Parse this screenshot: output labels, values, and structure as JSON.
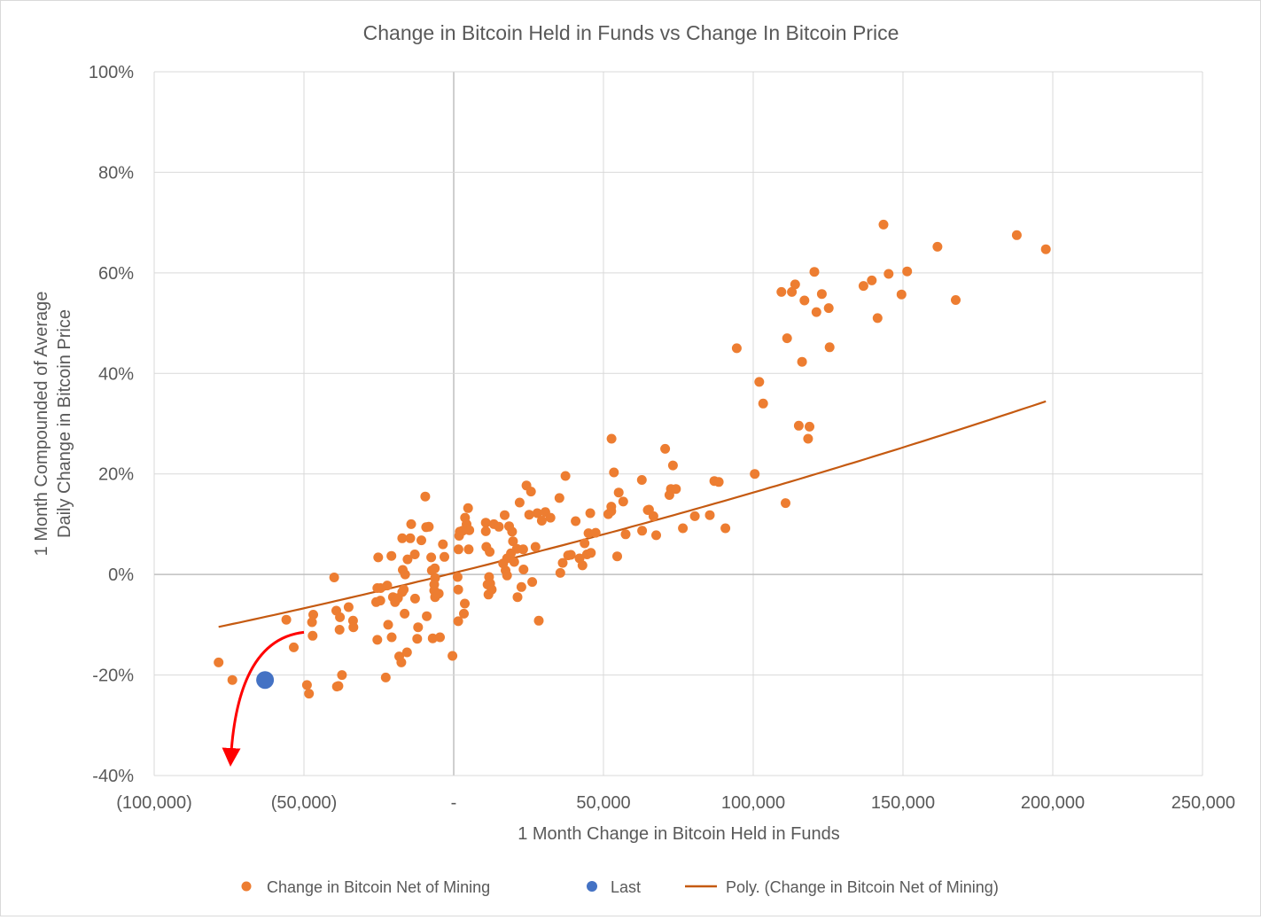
{
  "chart_data": {
    "type": "scatter",
    "title": "Change in Bitcoin Held in Funds vs Change In Bitcoin Price",
    "xlabel": "1 Month Change in Bitcoin Held in Funds",
    "ylabel_lines": [
      "1 Month Compounded of Average",
      "Daily Change in Bitcoin Price"
    ],
    "xlim": [
      -100000,
      250000
    ],
    "ylim": [
      -40,
      100
    ],
    "x_ticks": [
      {
        "value": -100000,
        "label": "(100,000)"
      },
      {
        "value": -50000,
        "label": "(50,000)"
      },
      {
        "value": 0,
        "label": "-"
      },
      {
        "value": 50000,
        "label": "50,000"
      },
      {
        "value": 100000,
        "label": "100,000"
      },
      {
        "value": 150000,
        "label": "150,000"
      },
      {
        "value": 200000,
        "label": "200,000"
      },
      {
        "value": 250000,
        "label": "250,000"
      }
    ],
    "y_ticks": [
      {
        "value": 100,
        "label": "100%"
      },
      {
        "value": 80,
        "label": "80%"
      },
      {
        "value": 60,
        "label": "60%"
      },
      {
        "value": 40,
        "label": "40%"
      },
      {
        "value": 20,
        "label": "20%"
      },
      {
        "value": 0,
        "label": "0%"
      },
      {
        "value": -20,
        "label": "-20%"
      },
      {
        "value": -40,
        "label": "-40%"
      }
    ],
    "grid": true,
    "legend_position": "bottom",
    "series": [
      {
        "name": "Change in Bitcoin Net of Mining",
        "kind": "scatter",
        "color": "#ED7D31",
        "points": [
          [
            -78500,
            -17.5
          ],
          [
            -73900,
            -21
          ],
          [
            -55900,
            -9
          ],
          [
            -53400,
            -14.5
          ],
          [
            -46900,
            -8
          ],
          [
            -47300,
            -9.5
          ],
          [
            -47100,
            -12.2
          ],
          [
            -49000,
            -22
          ],
          [
            -48300,
            -23.7
          ],
          [
            -39200,
            -7.2
          ],
          [
            -38000,
            -8.5
          ],
          [
            -38100,
            -11
          ],
          [
            -35100,
            -6.5
          ],
          [
            -33600,
            -9.2
          ],
          [
            -33500,
            -10.5
          ],
          [
            -37300,
            -20
          ],
          [
            -38500,
            -22.2
          ],
          [
            -39000,
            -22.3
          ],
          [
            -39900,
            -0.6
          ],
          [
            -25200,
            3.4
          ],
          [
            -22200,
            -2.2
          ],
          [
            -24400,
            -2.7
          ],
          [
            -24500,
            -5.2
          ],
          [
            -25500,
            -2.7
          ],
          [
            -25900,
            -5.5
          ],
          [
            -25500,
            -13
          ],
          [
            -22700,
            -20.5
          ],
          [
            -20800,
            3.7
          ],
          [
            -20300,
            -4.5
          ],
          [
            -19600,
            -5.5
          ],
          [
            -18600,
            -4.7
          ],
          [
            -17200,
            -3.5
          ],
          [
            -16700,
            -3
          ],
          [
            -17000,
            0.9
          ],
          [
            -16200,
            0
          ],
          [
            -17200,
            7.2
          ],
          [
            -16400,
            -7.8
          ],
          [
            -21900,
            -10
          ],
          [
            -20700,
            -12.5
          ],
          [
            -18200,
            -16.3
          ],
          [
            -17500,
            -17.5
          ],
          [
            -15600,
            -15.5
          ],
          [
            -15400,
            3
          ],
          [
            -14500,
            7.2
          ],
          [
            -14200,
            10
          ],
          [
            -13000,
            4
          ],
          [
            -12900,
            -4.8
          ],
          [
            -12200,
            -12.8
          ],
          [
            -11900,
            -10.5
          ],
          [
            -10800,
            6.8
          ],
          [
            -9500,
            15.5
          ],
          [
            -9200,
            9.4
          ],
          [
            -8300,
            9.5
          ],
          [
            -9000,
            -8.3
          ],
          [
            -7500,
            3.4
          ],
          [
            -7300,
            0.8
          ],
          [
            -6300,
            1.2
          ],
          [
            -6200,
            -0.7
          ],
          [
            -6500,
            -2
          ],
          [
            -6500,
            -3.2
          ],
          [
            -6200,
            -4.5
          ],
          [
            -7000,
            -12.7
          ],
          [
            -5000,
            -3.8
          ],
          [
            -4600,
            -12.5
          ],
          [
            -3600,
            6
          ],
          [
            -3100,
            3.5
          ],
          [
            -400,
            -16.2
          ],
          [
            1300,
            -0.5
          ],
          [
            1500,
            -9.3
          ],
          [
            1500,
            -3
          ],
          [
            1600,
            5
          ],
          [
            1800,
            7.7
          ],
          [
            2000,
            8.5
          ],
          [
            3000,
            8.7
          ],
          [
            3800,
            11.3
          ],
          [
            4300,
            10
          ],
          [
            4300,
            9
          ],
          [
            3700,
            -5.8
          ],
          [
            3400,
            -7.8
          ],
          [
            4800,
            13.2
          ],
          [
            5000,
            5
          ],
          [
            5200,
            8.8
          ],
          [
            10700,
            10.3
          ],
          [
            10700,
            8.6
          ],
          [
            10900,
            5.5
          ],
          [
            11300,
            -2
          ],
          [
            11600,
            -4
          ],
          [
            11800,
            -0.5
          ],
          [
            12000,
            4.5
          ],
          [
            12200,
            -1.8
          ],
          [
            12700,
            -3
          ],
          [
            13400,
            10
          ],
          [
            15100,
            9.5
          ],
          [
            16500,
            2.2
          ],
          [
            17000,
            11.8
          ],
          [
            17300,
            0.8
          ],
          [
            17800,
            3.2
          ],
          [
            17800,
            -0.2
          ],
          [
            18500,
            9.6
          ],
          [
            19100,
            4.2
          ],
          [
            19500,
            8.5
          ],
          [
            19800,
            6.6
          ],
          [
            20200,
            2.5
          ],
          [
            21100,
            5.1
          ],
          [
            21300,
            -4.5
          ],
          [
            22000,
            14.3
          ],
          [
            22600,
            -2.5
          ],
          [
            23200,
            5
          ],
          [
            23300,
            1
          ],
          [
            24300,
            17.7
          ],
          [
            25200,
            11.9
          ],
          [
            25800,
            16.5
          ],
          [
            26200,
            -1.5
          ],
          [
            27300,
            5.5
          ],
          [
            27900,
            12.2
          ],
          [
            28400,
            -9.2
          ],
          [
            29400,
            10.7
          ],
          [
            30600,
            12.4
          ],
          [
            32300,
            11.3
          ],
          [
            35300,
            15.2
          ],
          [
            35600,
            0.3
          ],
          [
            36400,
            2.3
          ],
          [
            37300,
            19.6
          ],
          [
            38200,
            3.8
          ],
          [
            39100,
            3.9
          ],
          [
            40700,
            10.6
          ],
          [
            42000,
            3.2
          ],
          [
            43000,
            1.8
          ],
          [
            43700,
            6.2
          ],
          [
            44500,
            4
          ],
          [
            45000,
            8.2
          ],
          [
            45600,
            12.2
          ],
          [
            45800,
            4.3
          ],
          [
            47400,
            8.3
          ],
          [
            51600,
            12
          ],
          [
            52600,
            12.6
          ],
          [
            52600,
            13.5
          ],
          [
            52700,
            27
          ],
          [
            53500,
            20.3
          ],
          [
            54600,
            3.6
          ],
          [
            55100,
            16.3
          ],
          [
            56600,
            14.5
          ],
          [
            57400,
            8
          ],
          [
            62800,
            18.8
          ],
          [
            62900,
            8.7
          ],
          [
            64800,
            12.8
          ],
          [
            65200,
            12.9
          ],
          [
            66700,
            11.6
          ],
          [
            67600,
            7.8
          ],
          [
            70600,
            25
          ],
          [
            72000,
            15.8
          ],
          [
            72500,
            17
          ],
          [
            73200,
            21.7
          ],
          [
            74200,
            17
          ],
          [
            76500,
            9.2
          ],
          [
            80500,
            11.6
          ],
          [
            85500,
            11.8
          ],
          [
            87000,
            18.6
          ],
          [
            88500,
            18.4
          ],
          [
            90700,
            9.2
          ],
          [
            94500,
            45
          ],
          [
            100500,
            20
          ],
          [
            102000,
            38.3
          ],
          [
            103300,
            34
          ],
          [
            109400,
            56.2
          ],
          [
            110800,
            14.2
          ],
          [
            111300,
            47
          ],
          [
            112900,
            56.2
          ],
          [
            114000,
            57.7
          ],
          [
            115200,
            29.6
          ],
          [
            116300,
            42.3
          ],
          [
            117100,
            54.5
          ],
          [
            118300,
            27
          ],
          [
            118800,
            29.4
          ],
          [
            120400,
            60.2
          ],
          [
            121100,
            52.2
          ],
          [
            122900,
            55.8
          ],
          [
            125200,
            53
          ],
          [
            125500,
            45.2
          ],
          [
            136800,
            57.4
          ],
          [
            139600,
            58.5
          ],
          [
            141500,
            51
          ],
          [
            143500,
            69.6
          ],
          [
            145200,
            59.8
          ],
          [
            149500,
            55.7
          ],
          [
            151400,
            60.3
          ],
          [
            161500,
            65.2
          ],
          [
            167600,
            54.6
          ],
          [
            188000,
            67.5
          ],
          [
            197700,
            64.7
          ]
        ]
      },
      {
        "name": "Last",
        "kind": "scatter",
        "color": "#4472C4",
        "points": [
          [
            -63000,
            -21
          ]
        ]
      },
      {
        "name": "Poly. (Change in Bitcoin Net of Mining)",
        "kind": "trendline",
        "color": "#C55A11",
        "x_range": [
          -78500,
          197700
        ],
        "poly": [
          0.3,
          0.000147,
          1.3e-10
        ]
      }
    ],
    "annotation": {
      "kind": "curved-arrow",
      "color": "#FF0000",
      "from": [
        -50000,
        -11.5
      ],
      "to": [
        -74500,
        -37.5
      ]
    }
  }
}
